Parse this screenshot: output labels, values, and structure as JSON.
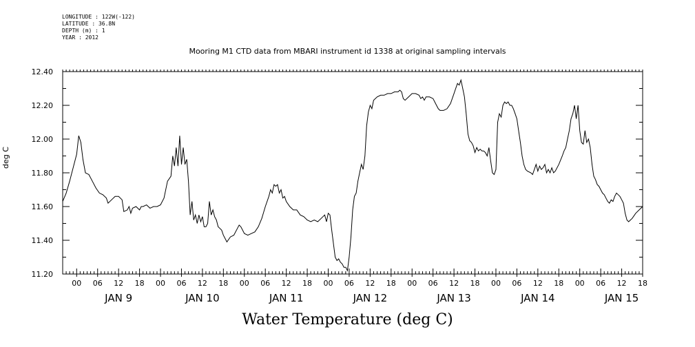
{
  "chart_data": {
    "type": "line",
    "meta": [
      "LONGITUDE : 122W(-122)",
      "LATITUDE : 36.8N",
      "DEPTH (m) : 1",
      "YEAR : 2012"
    ],
    "title": "Mooring M1 CTD data from MBARI instrument id 1338 at original sampling intervals",
    "xlabel": "Water Temperature (deg C)",
    "ylabel": "deg C",
    "ylim": [
      11.2,
      12.4
    ],
    "y_ticks": [
      "11.20",
      "11.40",
      "11.60",
      "11.80",
      "12.00",
      "12.20",
      "12.40"
    ],
    "x_unit": "hours since 2012-01-08 20:00",
    "xlim": [
      0,
      166
    ],
    "hour_ticks": [
      "00",
      "06",
      "12",
      "18"
    ],
    "day_labels": [
      "JAN  9",
      "JAN 10",
      "JAN 11",
      "JAN 12",
      "JAN 13",
      "JAN 14",
      "JAN 15"
    ],
    "grid": false,
    "series": [
      {
        "name": "Water Temperature",
        "color": "#000000",
        "points": [
          [
            0,
            11.63
          ],
          [
            1,
            11.68
          ],
          [
            2,
            11.75
          ],
          [
            3,
            11.83
          ],
          [
            4,
            11.91
          ],
          [
            4.6,
            12.02
          ],
          [
            5.2,
            11.98
          ],
          [
            5.8,
            11.88
          ],
          [
            6.5,
            11.8
          ],
          [
            7.5,
            11.79
          ],
          [
            8.5,
            11.75
          ],
          [
            9.5,
            11.71
          ],
          [
            10.5,
            11.68
          ],
          [
            11.5,
            11.67
          ],
          [
            12.5,
            11.65
          ],
          [
            13,
            11.62
          ],
          [
            14,
            11.64
          ],
          [
            15,
            11.66
          ],
          [
            16,
            11.66
          ],
          [
            17,
            11.64
          ],
          [
            17.5,
            11.57
          ],
          [
            18.5,
            11.58
          ],
          [
            19,
            11.6
          ],
          [
            19.5,
            11.56
          ],
          [
            20,
            11.59
          ],
          [
            21,
            11.6
          ],
          [
            22,
            11.58
          ],
          [
            22.5,
            11.6
          ],
          [
            23,
            11.6
          ],
          [
            24,
            11.61
          ],
          [
            25,
            11.59
          ],
          [
            26,
            11.6
          ],
          [
            27,
            11.6
          ],
          [
            28,
            11.61
          ],
          [
            29,
            11.65
          ],
          [
            30,
            11.75
          ],
          [
            31,
            11.78
          ],
          [
            31.5,
            11.9
          ],
          [
            32,
            11.84
          ],
          [
            32.5,
            11.95
          ],
          [
            33,
            11.84
          ],
          [
            33.5,
            12.02
          ],
          [
            34,
            11.85
          ],
          [
            34.5,
            11.95
          ],
          [
            35,
            11.85
          ],
          [
            35.5,
            11.88
          ],
          [
            36,
            11.75
          ],
          [
            36.5,
            11.55
          ],
          [
            37,
            11.63
          ],
          [
            37.5,
            11.52
          ],
          [
            38,
            11.55
          ],
          [
            38.5,
            11.5
          ],
          [
            39,
            11.55
          ],
          [
            39.5,
            11.51
          ],
          [
            40,
            11.54
          ],
          [
            40.5,
            11.48
          ],
          [
            41,
            11.48
          ],
          [
            41.5,
            11.5
          ],
          [
            42,
            11.63
          ],
          [
            42.5,
            11.55
          ],
          [
            43,
            11.58
          ],
          [
            43.5,
            11.54
          ],
          [
            44,
            11.52
          ],
          [
            44.5,
            11.48
          ],
          [
            45,
            11.47
          ],
          [
            45.5,
            11.46
          ],
          [
            46,
            11.43
          ],
          [
            47,
            11.39
          ],
          [
            48,
            11.42
          ],
          [
            49,
            11.43
          ],
          [
            50,
            11.47
          ],
          [
            50.5,
            11.49
          ],
          [
            51,
            11.48
          ],
          [
            52,
            11.44
          ],
          [
            53,
            11.43
          ],
          [
            54,
            11.44
          ],
          [
            55,
            11.45
          ],
          [
            56,
            11.48
          ],
          [
            57,
            11.53
          ],
          [
            58,
            11.6
          ],
          [
            59,
            11.66
          ],
          [
            59.5,
            11.7
          ],
          [
            60,
            11.68
          ],
          [
            60.5,
            11.73
          ],
          [
            61,
            11.72
          ],
          [
            61.5,
            11.73
          ],
          [
            62,
            11.68
          ],
          [
            62.5,
            11.7
          ],
          [
            63,
            11.65
          ],
          [
            63.5,
            11.66
          ],
          [
            64,
            11.63
          ],
          [
            65,
            11.6
          ],
          [
            66,
            11.58
          ],
          [
            67,
            11.58
          ],
          [
            68,
            11.55
          ],
          [
            69,
            11.54
          ],
          [
            70,
            11.52
          ],
          [
            71,
            11.51
          ],
          [
            72,
            11.52
          ],
          [
            73,
            11.51
          ],
          [
            74,
            11.53
          ],
          [
            75,
            11.55
          ],
          [
            75.5,
            11.51
          ],
          [
            76,
            11.56
          ],
          [
            76.5,
            11.55
          ],
          [
            77,
            11.46
          ],
          [
            77.5,
            11.38
          ],
          [
            78,
            11.3
          ],
          [
            78.5,
            11.28
          ],
          [
            79,
            11.29
          ],
          [
            79.5,
            11.27
          ],
          [
            80,
            11.26
          ],
          [
            80.5,
            11.24
          ],
          [
            81,
            11.24
          ],
          [
            81.5,
            11.22
          ],
          [
            82,
            11.3
          ],
          [
            82.5,
            11.42
          ],
          [
            83,
            11.58
          ],
          [
            83.5,
            11.66
          ],
          [
            84,
            11.68
          ],
          [
            84.5,
            11.75
          ],
          [
            85,
            11.8
          ],
          [
            85.5,
            11.85
          ],
          [
            86,
            11.82
          ],
          [
            86.5,
            11.9
          ],
          [
            87,
            12.08
          ],
          [
            87.5,
            12.16
          ],
          [
            88,
            12.2
          ],
          [
            88.5,
            12.18
          ],
          [
            89,
            12.23
          ],
          [
            90,
            12.25
          ],
          [
            91,
            12.26
          ],
          [
            92,
            12.26
          ],
          [
            93,
            12.27
          ],
          [
            94,
            12.27
          ],
          [
            95,
            12.28
          ],
          [
            96,
            12.28
          ],
          [
            96.5,
            12.29
          ],
          [
            97,
            12.28
          ],
          [
            97.5,
            12.24
          ],
          [
            98,
            12.23
          ],
          [
            99,
            12.25
          ],
          [
            100,
            12.27
          ],
          [
            101,
            12.27
          ],
          [
            102,
            12.26
          ],
          [
            102.5,
            12.24
          ],
          [
            103,
            12.25
          ],
          [
            103.5,
            12.23
          ],
          [
            104,
            12.25
          ],
          [
            105,
            12.25
          ],
          [
            106,
            12.24
          ],
          [
            106.5,
            12.22
          ],
          [
            107,
            12.2
          ],
          [
            107.5,
            12.18
          ],
          [
            108,
            12.17
          ],
          [
            109,
            12.17
          ],
          [
            110,
            12.18
          ],
          [
            111,
            12.21
          ],
          [
            112,
            12.27
          ],
          [
            112.5,
            12.3
          ],
          [
            113,
            12.33
          ],
          [
            113.5,
            12.32
          ],
          [
            114,
            12.35
          ],
          [
            114.5,
            12.3
          ],
          [
            115,
            12.25
          ],
          [
            115.5,
            12.15
          ],
          [
            116,
            12.03
          ],
          [
            116.5,
            11.99
          ],
          [
            117,
            11.98
          ],
          [
            117.5,
            11.96
          ],
          [
            118,
            11.92
          ],
          [
            118.5,
            11.95
          ],
          [
            119,
            11.93
          ],
          [
            119.5,
            11.94
          ],
          [
            120,
            11.93
          ],
          [
            120.5,
            11.93
          ],
          [
            121,
            11.92
          ],
          [
            121.5,
            11.9
          ],
          [
            122,
            11.95
          ],
          [
            122.5,
            11.87
          ],
          [
            123,
            11.8
          ],
          [
            123.5,
            11.79
          ],
          [
            124,
            11.82
          ],
          [
            124.5,
            12.1
          ],
          [
            125,
            12.15
          ],
          [
            125.5,
            12.13
          ],
          [
            126,
            12.2
          ],
          [
            126.5,
            12.22
          ],
          [
            127,
            12.21
          ],
          [
            127.5,
            12.22
          ],
          [
            128,
            12.2
          ],
          [
            128.5,
            12.2
          ],
          [
            129,
            12.18
          ],
          [
            129.5,
            12.15
          ],
          [
            130,
            12.12
          ],
          [
            130.5,
            12.05
          ],
          [
            131,
            11.98
          ],
          [
            131.5,
            11.9
          ],
          [
            132,
            11.85
          ],
          [
            132.5,
            11.82
          ],
          [
            133,
            11.81
          ],
          [
            134,
            11.8
          ],
          [
            134.5,
            11.79
          ],
          [
            135,
            11.82
          ],
          [
            135.5,
            11.85
          ],
          [
            136,
            11.81
          ],
          [
            136.5,
            11.84
          ],
          [
            137,
            11.82
          ],
          [
            137.5,
            11.83
          ],
          [
            138,
            11.85
          ],
          [
            138.5,
            11.8
          ],
          [
            139,
            11.82
          ],
          [
            139.5,
            11.8
          ],
          [
            140,
            11.83
          ],
          [
            140.5,
            11.8
          ],
          [
            141,
            11.81
          ],
          [
            142,
            11.85
          ],
          [
            143,
            11.9
          ],
          [
            143.5,
            11.93
          ],
          [
            144,
            11.95
          ],
          [
            144.5,
            12.0
          ],
          [
            145,
            12.05
          ],
          [
            145.5,
            12.12
          ],
          [
            146,
            12.15
          ],
          [
            146.5,
            12.2
          ],
          [
            147,
            12.12
          ],
          [
            147.5,
            12.2
          ],
          [
            148,
            12.05
          ],
          [
            148.5,
            11.98
          ],
          [
            149,
            11.97
          ],
          [
            149.5,
            12.05
          ],
          [
            150,
            11.98
          ],
          [
            150.5,
            12.0
          ],
          [
            151,
            11.95
          ],
          [
            151.5,
            11.85
          ],
          [
            152,
            11.78
          ],
          [
            152.5,
            11.76
          ],
          [
            153,
            11.73
          ],
          [
            153.5,
            11.72
          ],
          [
            154,
            11.7
          ],
          [
            154.5,
            11.68
          ],
          [
            155,
            11.67
          ],
          [
            155.5,
            11.65
          ],
          [
            156,
            11.63
          ],
          [
            156.5,
            11.62
          ],
          [
            157,
            11.64
          ],
          [
            157.5,
            11.63
          ],
          [
            158,
            11.66
          ],
          [
            158.5,
            11.68
          ],
          [
            159,
            11.67
          ],
          [
            159.5,
            11.66
          ],
          [
            160,
            11.64
          ],
          [
            160.5,
            11.62
          ],
          [
            161,
            11.56
          ],
          [
            161.5,
            11.52
          ],
          [
            162,
            11.51
          ],
          [
            162.5,
            11.52
          ],
          [
            163,
            11.53
          ],
          [
            164,
            11.56
          ],
          [
            165,
            11.58
          ],
          [
            166,
            11.6
          ]
        ]
      }
    ]
  }
}
